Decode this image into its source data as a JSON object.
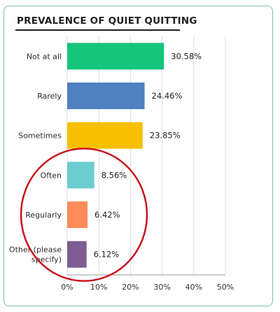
{
  "chart_data": {
    "type": "bar",
    "orientation": "horizontal",
    "title": "PREVALENCE OF QUIET QUITTING",
    "categories": [
      "Not at all",
      "Rarely",
      "Sometimes",
      "Often",
      "Regularly",
      "Other (please specify)"
    ],
    "values": [
      30.58,
      24.46,
      23.85,
      8.56,
      6.42,
      6.12
    ],
    "data_labels": [
      "30.58%",
      "24.46%",
      "23.85%",
      "8.56%",
      "6.42%",
      "6.12%"
    ],
    "colors": [
      "#13c57a",
      "#4f80c0",
      "#f7c000",
      "#6ccdd0",
      "#fe8c5a",
      "#7c5c93"
    ],
    "xlim": [
      0,
      50
    ],
    "x_ticks": [
      "0%",
      "10%",
      "20%",
      "30%",
      "40%",
      "50%"
    ],
    "xlabel": "",
    "ylabel": "",
    "grid": "vertical",
    "annotation": {
      "shape": "circle",
      "color": "#c8141e",
      "highlights": [
        "Often",
        "Regularly",
        "Other (please specify)"
      ]
    }
  }
}
